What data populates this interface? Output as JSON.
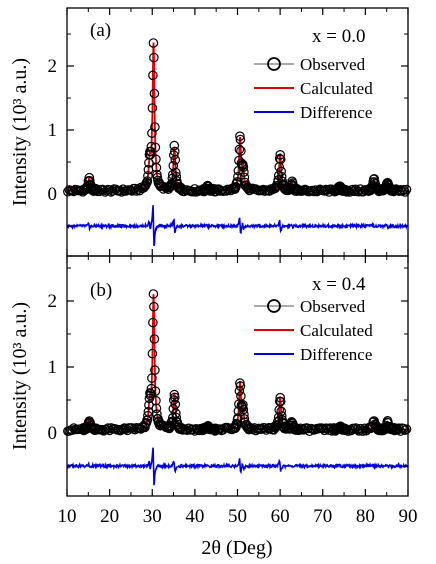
{
  "colors": {
    "observed": "#000000",
    "calculated": "#e00000",
    "difference": "#0000dd",
    "background": "#ffffff"
  },
  "figure": {
    "xlabel": "2θ (Deg)",
    "ylabel": "Intensity (10³ a.u.)",
    "xticks": [
      "10",
      "20",
      "30",
      "40",
      "50",
      "60",
      "70",
      "80",
      "90"
    ]
  },
  "panels": [
    {
      "tag": "(a)",
      "composition": "x = 0.0",
      "yticks": [
        "0",
        "1",
        "2"
      ],
      "legend": [
        "Observed",
        "Calculated",
        "Difference"
      ]
    },
    {
      "tag": "(b)",
      "composition": "x = 0.4",
      "yticks": [
        "0",
        "1",
        "2"
      ],
      "legend": [
        "Observed",
        "Calculated",
        "Difference"
      ]
    }
  ],
  "chart_data": [
    {
      "type": "line",
      "panel": "(a)",
      "annotation": "x = 0.0",
      "xlabel": "2θ (Deg)",
      "ylabel": "Intensity (10³ a.u.)",
      "xlim": [
        10,
        90
      ],
      "ylim": [
        -0.75,
        2.4
      ],
      "x_ticks": [
        10,
        20,
        30,
        40,
        50,
        60,
        70,
        80,
        90
      ],
      "y_ticks": [
        0,
        1,
        2
      ],
      "legend_position": "top-right",
      "baseline": 0.05,
      "difference_offset": -0.5,
      "peaks": [
        {
          "x": 15.2,
          "y": 0.25
        },
        {
          "x": 29.4,
          "y": 0.45
        },
        {
          "x": 30.3,
          "y": 2.33
        },
        {
          "x": 35.2,
          "y": 0.73
        },
        {
          "x": 43.0,
          "y": 0.12
        },
        {
          "x": 50.6,
          "y": 0.85
        },
        {
          "x": 51.3,
          "y": 0.35
        },
        {
          "x": 60.0,
          "y": 0.63
        },
        {
          "x": 62.8,
          "y": 0.18
        },
        {
          "x": 74.0,
          "y": 0.12
        },
        {
          "x": 82.0,
          "y": 0.23
        },
        {
          "x": 85.2,
          "y": 0.2
        }
      ],
      "series": [
        {
          "name": "Observed",
          "marker": "open-circle"
        },
        {
          "name": "Calculated",
          "style": "line"
        },
        {
          "name": "Difference",
          "style": "line"
        }
      ]
    },
    {
      "type": "line",
      "panel": "(b)",
      "annotation": "x = 0.4",
      "xlabel": "2θ (Deg)",
      "ylabel": "Intensity (10³ a.u.)",
      "xlim": [
        10,
        90
      ],
      "ylim": [
        -0.75,
        2.4
      ],
      "x_ticks": [
        10,
        20,
        30,
        40,
        50,
        60,
        70,
        80,
        90
      ],
      "y_ticks": [
        0,
        1,
        2
      ],
      "legend_position": "top-right",
      "baseline": 0.05,
      "difference_offset": -0.5,
      "peaks": [
        {
          "x": 15.2,
          "y": 0.2
        },
        {
          "x": 29.4,
          "y": 0.4
        },
        {
          "x": 30.3,
          "y": 2.07
        },
        {
          "x": 35.2,
          "y": 0.6
        },
        {
          "x": 43.0,
          "y": 0.1
        },
        {
          "x": 50.6,
          "y": 0.75
        },
        {
          "x": 51.3,
          "y": 0.3
        },
        {
          "x": 60.0,
          "y": 0.55
        },
        {
          "x": 62.8,
          "y": 0.15
        },
        {
          "x": 74.0,
          "y": 0.1
        },
        {
          "x": 82.0,
          "y": 0.18
        },
        {
          "x": 85.2,
          "y": 0.17
        }
      ],
      "series": [
        {
          "name": "Observed",
          "marker": "open-circle"
        },
        {
          "name": "Calculated",
          "style": "line"
        },
        {
          "name": "Difference",
          "style": "line"
        }
      ]
    }
  ]
}
